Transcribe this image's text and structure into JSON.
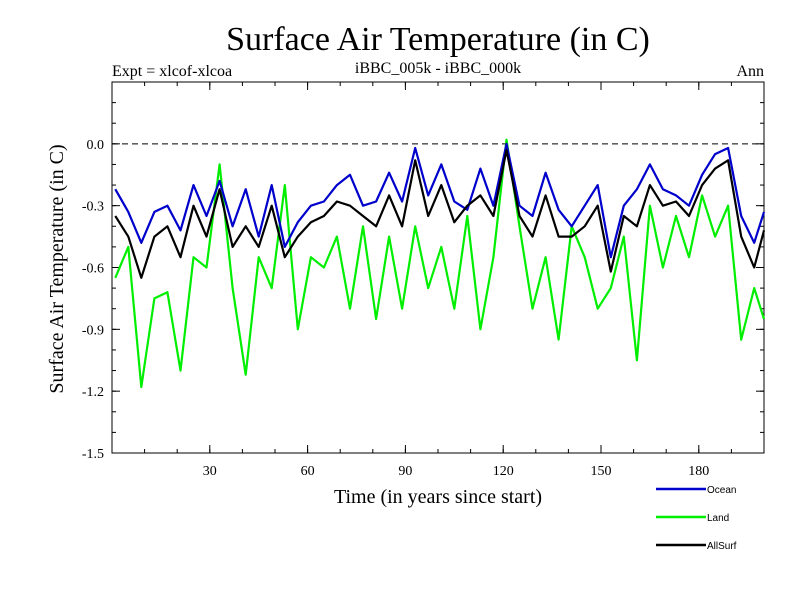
{
  "chart_data": {
    "type": "line",
    "title": "Surface Air Temperature (in C)",
    "subtitle_left": "Expt = xlcof-xlcoa",
    "subtitle_center": "iBBC_005k - iBBC_000k",
    "subtitle_right": "Ann",
    "xlabel": "Time (in years since start)",
    "ylabel": "Surface Air Temperature (in C)",
    "xlim": [
      0,
      200
    ],
    "ylim": [
      -1.5,
      0.3
    ],
    "xticks": [
      30,
      60,
      90,
      120,
      150,
      180
    ],
    "xtick_labels": [
      "30",
      "60",
      "90",
      "120",
      "150",
      "180"
    ],
    "yticks": [
      0.0,
      -0.3,
      -0.6,
      -0.9,
      -1.2,
      -1.5
    ],
    "ytick_labels": [
      "0.0",
      "-0.3",
      "-0.6",
      "-0.9",
      "-1.2",
      "-1.5"
    ],
    "reference_line": 0.0,
    "legend_position": "bottom-right, below plot",
    "series": [
      {
        "name": "Ocean",
        "color": "#0000cc",
        "x": [
          1,
          5,
          9,
          13,
          17,
          21,
          25,
          29,
          33,
          37,
          41,
          45,
          49,
          53,
          57,
          61,
          65,
          69,
          73,
          77,
          81,
          85,
          89,
          93,
          97,
          101,
          105,
          109,
          113,
          117,
          121,
          125,
          129,
          133,
          137,
          141,
          145,
          149,
          153,
          157,
          161,
          165,
          169,
          173,
          177,
          181,
          185,
          189,
          193,
          197,
          200
        ],
        "values": [
          -0.22,
          -0.33,
          -0.48,
          -0.33,
          -0.3,
          -0.42,
          -0.2,
          -0.35,
          -0.18,
          -0.4,
          -0.22,
          -0.45,
          -0.2,
          -0.5,
          -0.38,
          -0.3,
          -0.28,
          -0.2,
          -0.15,
          -0.3,
          -0.28,
          -0.14,
          -0.28,
          -0.02,
          -0.25,
          -0.1,
          -0.28,
          -0.32,
          -0.12,
          -0.3,
          0.0,
          -0.3,
          -0.35,
          -0.14,
          -0.32,
          -0.4,
          -0.3,
          -0.2,
          -0.55,
          -0.3,
          -0.22,
          -0.1,
          -0.22,
          -0.25,
          -0.3,
          -0.15,
          -0.05,
          -0.02,
          -0.35,
          -0.48,
          -0.33
        ]
      },
      {
        "name": "Land",
        "color": "#00ee00",
        "x": [
          1,
          5,
          9,
          13,
          17,
          21,
          25,
          29,
          33,
          37,
          41,
          45,
          49,
          53,
          57,
          61,
          65,
          69,
          73,
          77,
          81,
          85,
          89,
          93,
          97,
          101,
          105,
          109,
          113,
          117,
          121,
          125,
          129,
          133,
          137,
          141,
          145,
          149,
          153,
          157,
          161,
          165,
          169,
          173,
          177,
          181,
          185,
          189,
          193,
          197,
          200
        ],
        "values": [
          -0.65,
          -0.5,
          -1.18,
          -0.75,
          -0.72,
          -1.1,
          -0.55,
          -0.6,
          -0.1,
          -0.7,
          -1.12,
          -0.55,
          -0.7,
          -0.2,
          -0.9,
          -0.55,
          -0.6,
          -0.45,
          -0.8,
          -0.4,
          -0.85,
          -0.45,
          -0.8,
          -0.4,
          -0.7,
          -0.5,
          -0.8,
          -0.35,
          -0.9,
          -0.55,
          0.02,
          -0.4,
          -0.8,
          -0.55,
          -0.95,
          -0.4,
          -0.55,
          -0.8,
          -0.7,
          -0.45,
          -1.05,
          -0.3,
          -0.6,
          -0.35,
          -0.55,
          -0.25,
          -0.45,
          -0.3,
          -0.95,
          -0.7,
          -0.85
        ]
      },
      {
        "name": "AllSurf",
        "color": "#000000",
        "x": [
          1,
          5,
          9,
          13,
          17,
          21,
          25,
          29,
          33,
          37,
          41,
          45,
          49,
          53,
          57,
          61,
          65,
          69,
          73,
          77,
          81,
          85,
          89,
          93,
          97,
          101,
          105,
          109,
          113,
          117,
          121,
          125,
          129,
          133,
          137,
          141,
          145,
          149,
          153,
          157,
          161,
          165,
          169,
          173,
          177,
          181,
          185,
          189,
          193,
          197,
          200
        ],
        "values": [
          -0.35,
          -0.45,
          -0.65,
          -0.45,
          -0.4,
          -0.55,
          -0.3,
          -0.45,
          -0.22,
          -0.5,
          -0.4,
          -0.5,
          -0.3,
          -0.55,
          -0.45,
          -0.38,
          -0.35,
          -0.28,
          -0.3,
          -0.35,
          -0.4,
          -0.25,
          -0.4,
          -0.08,
          -0.35,
          -0.2,
          -0.38,
          -0.3,
          -0.25,
          -0.35,
          -0.03,
          -0.35,
          -0.45,
          -0.25,
          -0.45,
          -0.45,
          -0.4,
          -0.3,
          -0.62,
          -0.35,
          -0.4,
          -0.2,
          -0.3,
          -0.28,
          -0.35,
          -0.2,
          -0.12,
          -0.08,
          -0.45,
          -0.6,
          -0.42
        ]
      }
    ]
  }
}
